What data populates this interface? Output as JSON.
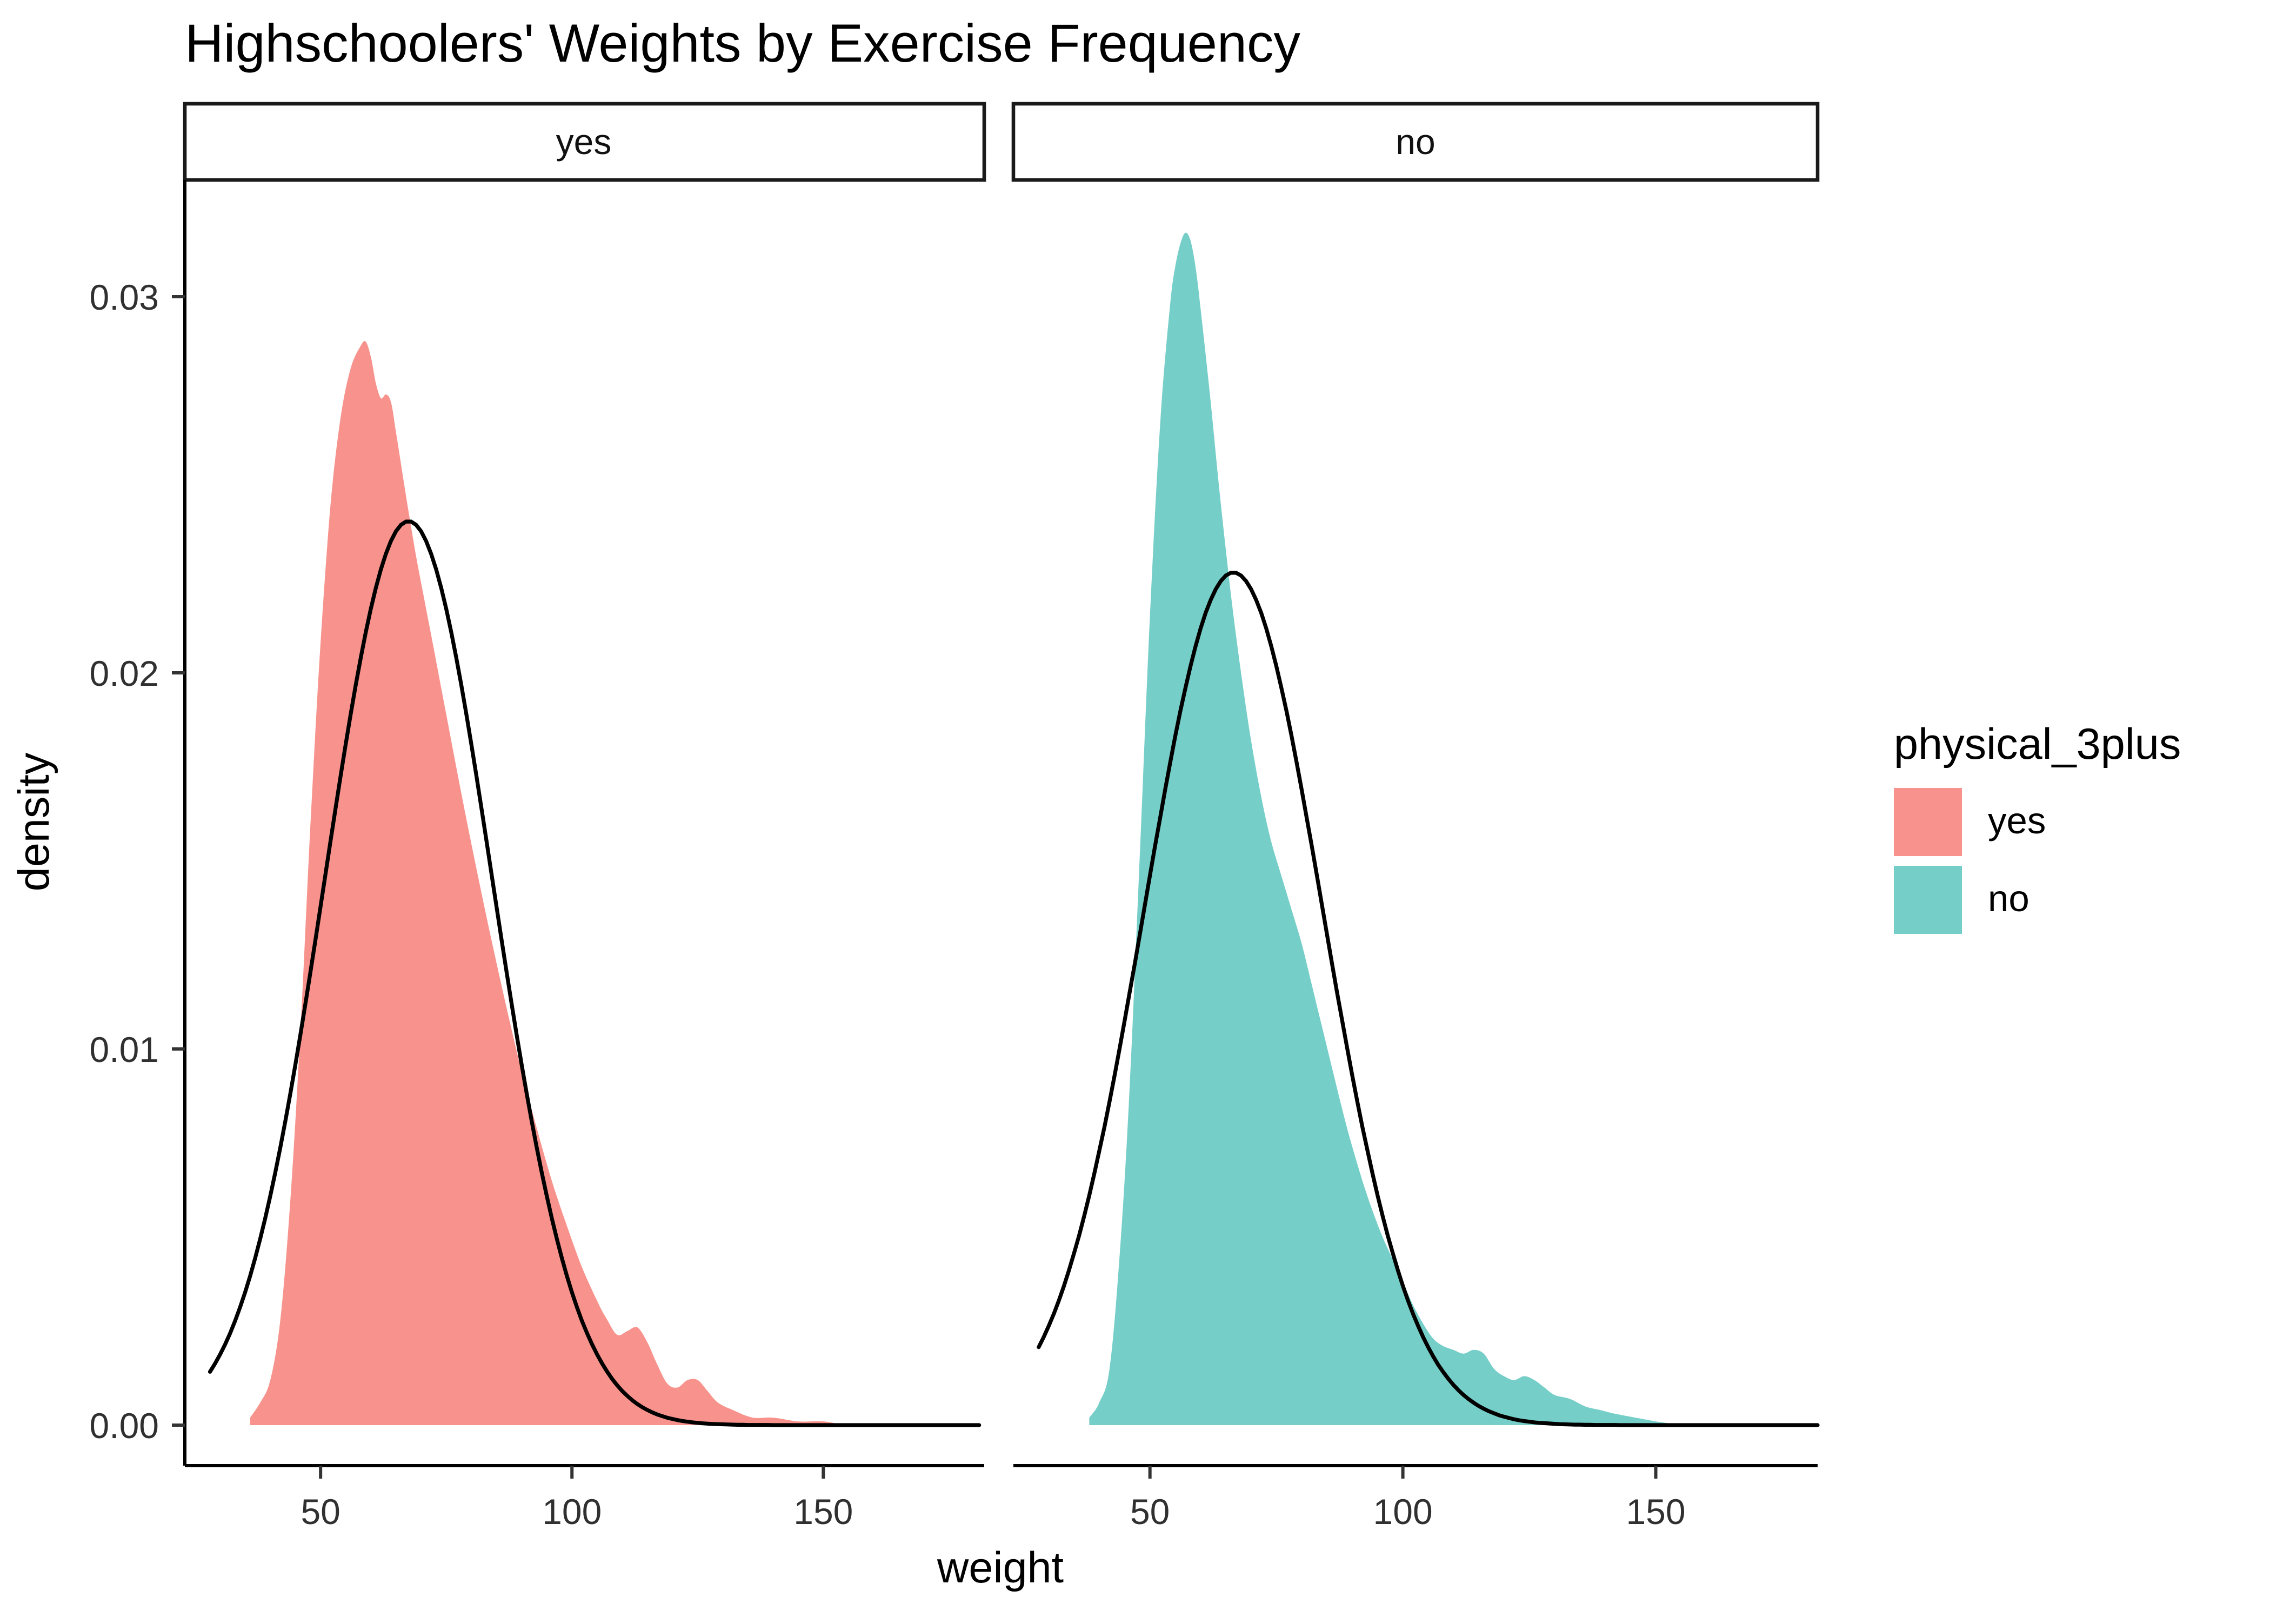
{
  "chart_data": {
    "type": "area",
    "title": "Highschoolers' Weights by Exercise Frequency",
    "xlabel": "weight",
    "ylabel": "density",
    "xlim": [
      23,
      182
    ],
    "ylim": [
      0,
      0.0331
    ],
    "x_ticks": [
      50,
      100,
      150
    ],
    "x_tick_labels": [
      "50",
      "100",
      "150"
    ],
    "y_ticks": [
      0,
      0.01,
      0.02,
      0.03
    ],
    "y_tick_labels": [
      "0.00",
      "0.01",
      "0.02",
      "0.03"
    ],
    "grid": false,
    "panel_background": "#ffffff",
    "legend": {
      "title": "physical_3plus",
      "position": "right",
      "entries": [
        {
          "label": "yes",
          "color": "#F7938C"
        },
        {
          "label": "no",
          "color": "#76CEC9"
        }
      ]
    },
    "facets": [
      {
        "label": "yes",
        "fill": "#F7938C",
        "density": [
          [
            36,
            0.0002
          ],
          [
            38,
            0.0006
          ],
          [
            40,
            0.0012
          ],
          [
            42,
            0.0028
          ],
          [
            44,
            0.006
          ],
          [
            46,
            0.0105
          ],
          [
            48,
            0.016
          ],
          [
            50,
            0.0208
          ],
          [
            52,
            0.0245
          ],
          [
            54,
            0.0268
          ],
          [
            56,
            0.0281
          ],
          [
            58,
            0.0287
          ],
          [
            59,
            0.0288
          ],
          [
            60,
            0.0284
          ],
          [
            61,
            0.0277
          ],
          [
            62,
            0.0273
          ],
          [
            63,
            0.0274
          ],
          [
            64,
            0.0272
          ],
          [
            65,
            0.0264
          ],
          [
            67,
            0.0247
          ],
          [
            69,
            0.0231
          ],
          [
            71,
            0.0217
          ],
          [
            73,
            0.0203
          ],
          [
            75,
            0.0189
          ],
          [
            78,
            0.0168
          ],
          [
            81,
            0.0148
          ],
          [
            84,
            0.0129
          ],
          [
            87,
            0.0111
          ],
          [
            90,
            0.0094
          ],
          [
            93,
            0.0079
          ],
          [
            96,
            0.0065
          ],
          [
            99,
            0.0053
          ],
          [
            102,
            0.0042
          ],
          [
            105,
            0.0033
          ],
          [
            107,
            0.0028
          ],
          [
            109,
            0.0024
          ],
          [
            111,
            0.0025
          ],
          [
            113,
            0.0026
          ],
          [
            115,
            0.0022
          ],
          [
            117,
            0.0016
          ],
          [
            119,
            0.0011
          ],
          [
            121,
            0.001
          ],
          [
            123,
            0.0012
          ],
          [
            125,
            0.0012
          ],
          [
            127,
            0.0009
          ],
          [
            129,
            0.0006
          ],
          [
            132,
            0.0004
          ],
          [
            136,
            0.0002
          ],
          [
            140,
            0.0002
          ],
          [
            145,
            0.0001
          ],
          [
            150,
            0.0001
          ],
          [
            154,
            0
          ]
        ],
        "normal_curve": {
          "mean": 67.5,
          "sd": 16.6,
          "peak_density": 0.024,
          "x_start": 28,
          "x_end": 181,
          "color": "#000000"
        }
      },
      {
        "label": "no",
        "fill": "#76CEC9",
        "density": [
          [
            38,
            0.0002
          ],
          [
            40,
            0.0006
          ],
          [
            42,
            0.0015
          ],
          [
            44,
            0.0045
          ],
          [
            46,
            0.009
          ],
          [
            48,
            0.0152
          ],
          [
            50,
            0.0215
          ],
          [
            52,
            0.0266
          ],
          [
            54,
            0.0298
          ],
          [
            55,
            0.0308
          ],
          [
            56,
            0.0314
          ],
          [
            57,
            0.0317
          ],
          [
            58,
            0.0315
          ],
          [
            59,
            0.0308
          ],
          [
            60,
            0.0297
          ],
          [
            62,
            0.0272
          ],
          [
            64,
            0.0245
          ],
          [
            66,
            0.0221
          ],
          [
            68,
            0.02
          ],
          [
            70,
            0.0182
          ],
          [
            72,
            0.0167
          ],
          [
            74,
            0.0155
          ],
          [
            76,
            0.0146
          ],
          [
            78,
            0.0137
          ],
          [
            80,
            0.0128
          ],
          [
            82,
            0.0117
          ],
          [
            84,
            0.0106
          ],
          [
            86,
            0.0095
          ],
          [
            88,
            0.0084
          ],
          [
            90,
            0.0074
          ],
          [
            92,
            0.0065
          ],
          [
            94,
            0.0057
          ],
          [
            96,
            0.005
          ],
          [
            98,
            0.0044
          ],
          [
            100,
            0.0038
          ],
          [
            102,
            0.0032
          ],
          [
            104,
            0.0027
          ],
          [
            106,
            0.0023
          ],
          [
            108,
            0.0021
          ],
          [
            110,
            0.002
          ],
          [
            112,
            0.0019
          ],
          [
            114,
            0.002
          ],
          [
            116,
            0.0019
          ],
          [
            118,
            0.0015
          ],
          [
            120,
            0.0013
          ],
          [
            122,
            0.0012
          ],
          [
            124,
            0.0013
          ],
          [
            126,
            0.0012
          ],
          [
            128,
            0.001
          ],
          [
            130,
            0.0008
          ],
          [
            133,
            0.0007
          ],
          [
            136,
            0.0005
          ],
          [
            139,
            0.0004
          ],
          [
            142,
            0.0003
          ],
          [
            146,
            0.0002
          ],
          [
            150,
            0.0001
          ],
          [
            155,
            0
          ]
        ],
        "normal_curve": {
          "mean": 66.5,
          "sd": 17.6,
          "peak_density": 0.0226,
          "x_start": 28,
          "x_end": 182,
          "color": "#000000"
        }
      }
    ]
  }
}
